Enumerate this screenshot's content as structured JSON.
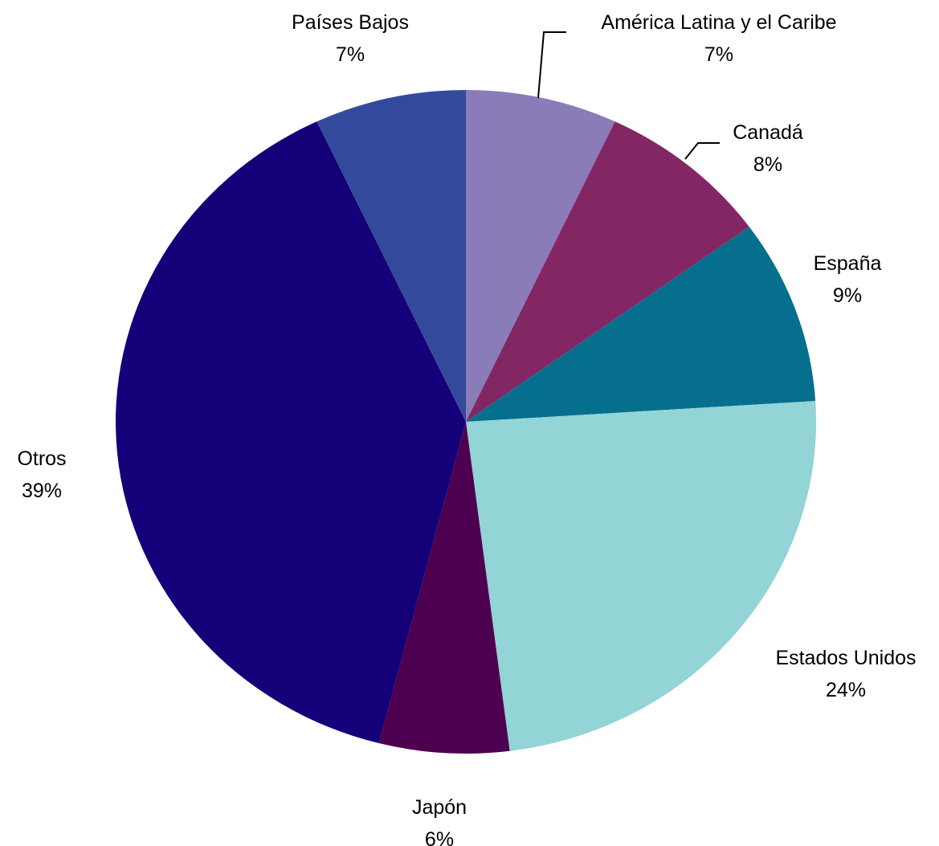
{
  "chart_data": {
    "type": "pie",
    "title": "",
    "legend": "none",
    "slices": [
      {
        "label": "América Latina y el Caribe",
        "value": 7,
        "display": "7%",
        "color": "#8A7CB8"
      },
      {
        "label": "Canadá",
        "value": 8,
        "display": "8%",
        "color": "#832764"
      },
      {
        "label": "España",
        "value": 9,
        "display": "9%",
        "color": "#066F8E"
      },
      {
        "label": "Estados Unidos",
        "value": 24,
        "display": "24%",
        "color": "#93D4D6"
      },
      {
        "label": "Japón",
        "value": 6,
        "display": "6%",
        "color": "#4D004F"
      },
      {
        "label": "Otros",
        "value": 39,
        "display": "39%",
        "color": "#140078"
      },
      {
        "label": "Países Bajos",
        "value": 7,
        "display": "7%",
        "color": "#334A9C"
      }
    ]
  }
}
